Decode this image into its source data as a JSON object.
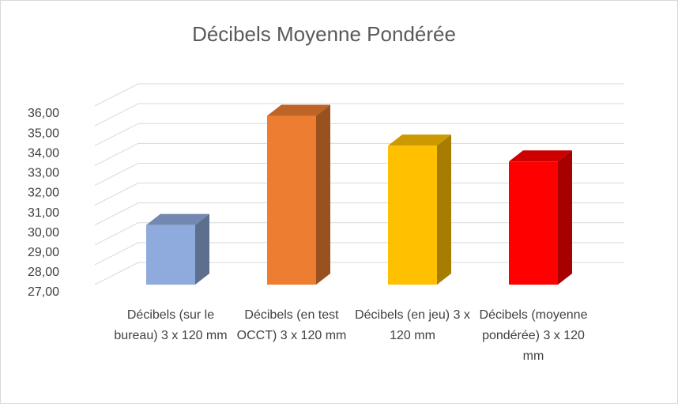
{
  "chart_data": {
    "type": "bar3d",
    "title": "Décibels Moyenne Pondérée",
    "categories": [
      "Décibels (sur le bureau) 3 x 120 mm",
      "Décibels (en test OCCT) 3 x 120 mm",
      "Décibels (en jeu) 3 x 120 mm",
      "Décibels (moyenne pondérée) 3 x 120 mm"
    ],
    "values": [
      30,
      35.5,
      34,
      33.2
    ],
    "colors": [
      "#8faadc",
      "#ed7d31",
      "#ffc000",
      "#ff0000"
    ],
    "ylim": [
      27,
      36
    ],
    "yticks": [
      {
        "value": 27,
        "label": "27,00"
      },
      {
        "value": 28,
        "label": "28,00"
      },
      {
        "value": 29,
        "label": "29,00"
      },
      {
        "value": 30,
        "label": "30,00"
      },
      {
        "value": 31,
        "label": "31,00"
      },
      {
        "value": 32,
        "label": "32,00"
      },
      {
        "value": 33,
        "label": "33,00"
      },
      {
        "value": 34,
        "label": "34,00"
      },
      {
        "value": 35,
        "label": "35,00"
      },
      {
        "value": 36,
        "label": "36,00"
      }
    ],
    "grid": true
  }
}
